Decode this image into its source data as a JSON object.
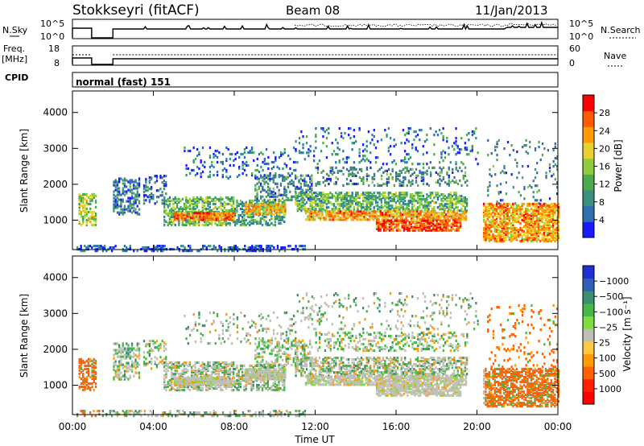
{
  "header": {
    "station": "Stokkseyri (fitACF)",
    "beam": "Beam 08",
    "date": "11/Jan/2013"
  },
  "sky_panel": {
    "left_label": "N.Sky",
    "left_ticks": [
      "10^5",
      "10^0"
    ],
    "right_ticks": [
      "10^5",
      "10^0"
    ],
    "right_label": "N.Search"
  },
  "freq_panel": {
    "left_label_1": "Freq.",
    "left_label_2": "[MHz]",
    "left_ticks": [
      "18",
      "8"
    ],
    "right_ticks": [
      "60",
      "0"
    ],
    "right_label": "Nave"
  },
  "cpid": {
    "label": "CPID",
    "value": "normal (fast) 151"
  },
  "x_axis": {
    "label": "Time UT",
    "ticks": [
      "00:00",
      "04:00",
      "08:00",
      "12:00",
      "16:00",
      "20:00",
      "00:00"
    ]
  },
  "chart_data": [
    {
      "type": "heatmap",
      "title": "Power",
      "ylabel": "Slant Range [km]",
      "xlabel": "Time UT",
      "y_ticks": [
        "1000",
        "2000",
        "3000",
        "4000"
      ],
      "colorbar_label": "Power [dB]",
      "colorbar_ticks": [
        "4",
        "8",
        "12",
        "16",
        "20",
        "24",
        "28"
      ],
      "colorscale": [
        "#1a1aff",
        "#2f6fb0",
        "#3a8f80",
        "#4faa4f",
        "#8fcc3f",
        "#e8d030",
        "#ff9a00",
        "#ff5a00",
        "#ff0000"
      ],
      "x_range_hours": [
        0,
        24
      ],
      "y_range_km": [
        180,
        4600
      ]
    },
    {
      "type": "heatmap",
      "title": "Velocity",
      "ylabel": "Slant Range [km]",
      "xlabel": "Time UT",
      "y_ticks": [
        "1000",
        "2000",
        "3000",
        "4000"
      ],
      "colorbar_label": "Velocity [m s⁻¹]",
      "colorbar_ticks": [
        "1000",
        "500",
        "100",
        "25",
        "−25",
        "−100",
        "−500",
        "−1000"
      ],
      "colorscale": [
        "#1f2fd0",
        "#2f5fb8",
        "#3a8f6f",
        "#45b845",
        "#7fdc3f",
        "#bfbfb5",
        "#ffc840",
        "#ff9a00",
        "#ff6000",
        "#ff2000",
        "#ff0000"
      ],
      "x_range_hours": [
        0,
        24
      ],
      "y_range_km": [
        180,
        4600
      ]
    }
  ]
}
